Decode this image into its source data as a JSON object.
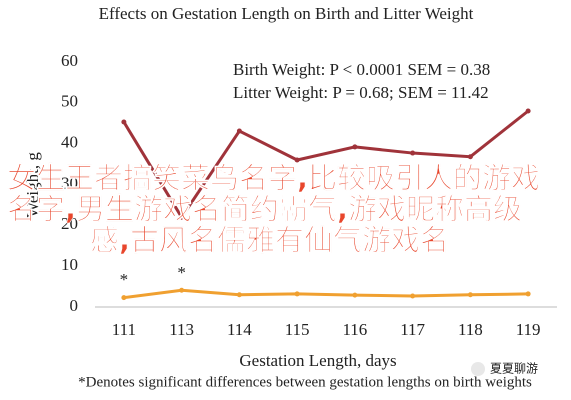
{
  "chart_data": {
    "type": "line",
    "title": "Effects on Gestation Length on Birth and Litter Weight",
    "x_label": "Gestation Length, days",
    "y_label": "Weight, g",
    "footnote": "*Denotes significant differences between gestation lengths on birth weights",
    "annotations": [
      "Birth Weight: P < 0.0001 SEM = 0.38",
      "Litter Weight: P = 0.68; SEM = 11.42",
      "*",
      "*"
    ],
    "categories": [
      "111",
      "113",
      "114",
      "115",
      "116",
      "117",
      "118",
      "119"
    ],
    "series": [
      {
        "color": "#a0333a",
        "values": [
          45.3,
          22,
          43.1,
          36,
          39.2,
          37.7,
          36.8,
          48
        ]
      },
      {
        "color": "#f0a030",
        "values": [
          2.3,
          4.1,
          3.0,
          3.2,
          2.9,
          2.7,
          3.0,
          3.2
        ]
      }
    ],
    "ylim": [
      0,
      60
    ],
    "yticks": [
      0,
      10,
      20,
      30,
      40,
      50,
      60
    ]
  },
  "overlay_text": [
    "女生王者搞笑菜鸟名字,比较吸引人的游戏",
    "名字,男生游戏名简约霸气,游戏昵称高级",
    "感,古风名儒雅有仙气游戏名"
  ],
  "watermark": "夏夏聊游"
}
